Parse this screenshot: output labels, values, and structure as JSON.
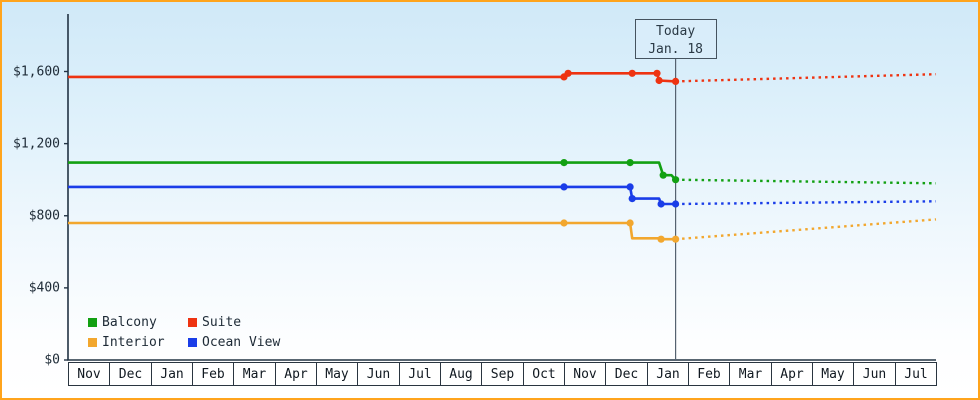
{
  "chart_data": {
    "type": "line",
    "title": "",
    "xlabel": "",
    "ylabel": "",
    "ylim": [
      0,
      1600
    ],
    "grid": false,
    "legend_position": "bottom-left",
    "y_ticks": [
      {
        "value": 0,
        "label": "$0"
      },
      {
        "value": 400,
        "label": "$400"
      },
      {
        "value": 800,
        "label": "$800"
      },
      {
        "value": 1200,
        "label": "$1,200"
      },
      {
        "value": 1600,
        "label": "$1,600"
      }
    ],
    "x_months": [
      "Nov",
      "Dec",
      "Jan",
      "Feb",
      "Mar",
      "Apr",
      "May",
      "Jun",
      "Jul",
      "Aug",
      "Sep",
      "Oct",
      "Nov",
      "Dec",
      "Jan",
      "Feb",
      "Mar",
      "Apr",
      "May",
      "Jun",
      "Jul"
    ],
    "today": {
      "month_index": 14.7,
      "label_line1": "Today",
      "label_line2": "Jan. 18"
    },
    "series": [
      {
        "name": "Suite",
        "color": "#ee3311",
        "history": [
          [
            0,
            1570
          ],
          [
            12,
            1570
          ],
          [
            12.1,
            1590
          ],
          [
            14.25,
            1590
          ],
          [
            14.3,
            1550
          ],
          [
            14.7,
            1545
          ]
        ],
        "dots": [
          [
            12,
            1570
          ],
          [
            12.1,
            1590
          ],
          [
            13.65,
            1590
          ],
          [
            14.25,
            1590
          ],
          [
            14.3,
            1550
          ],
          [
            14.7,
            1545
          ]
        ],
        "prediction": [
          [
            14.7,
            1545
          ],
          [
            21,
            1585
          ]
        ]
      },
      {
        "name": "Balcony",
        "color": "#12a012",
        "history": [
          [
            0,
            1095
          ],
          [
            14.3,
            1095
          ],
          [
            14.4,
            1025
          ],
          [
            14.6,
            1025
          ],
          [
            14.7,
            1000
          ]
        ],
        "dots": [
          [
            12,
            1095
          ],
          [
            13.6,
            1095
          ],
          [
            14.4,
            1025
          ],
          [
            14.7,
            1000
          ]
        ],
        "prediction": [
          [
            14.7,
            1000
          ],
          [
            21,
            980
          ]
        ]
      },
      {
        "name": "Ocean View",
        "color": "#1a3de8",
        "history": [
          [
            0,
            960
          ],
          [
            13.6,
            960
          ],
          [
            13.65,
            895
          ],
          [
            14.3,
            895
          ],
          [
            14.35,
            865
          ],
          [
            14.7,
            865
          ]
        ],
        "dots": [
          [
            12,
            960
          ],
          [
            13.6,
            960
          ],
          [
            13.65,
            895
          ],
          [
            14.35,
            865
          ],
          [
            14.7,
            865
          ]
        ],
        "prediction": [
          [
            14.7,
            865
          ],
          [
            21,
            880
          ]
        ]
      },
      {
        "name": "Interior",
        "color": "#f2a72e",
        "history": [
          [
            0,
            760
          ],
          [
            13.6,
            760
          ],
          [
            13.65,
            675
          ],
          [
            14.3,
            675
          ],
          [
            14.35,
            670
          ],
          [
            14.7,
            670
          ]
        ],
        "dots": [
          [
            12,
            760
          ],
          [
            13.6,
            760
          ],
          [
            14.35,
            670
          ],
          [
            14.7,
            670
          ]
        ],
        "prediction": [
          [
            14.7,
            670
          ],
          [
            21,
            780
          ]
        ]
      }
    ]
  },
  "legend": {
    "items": [
      {
        "label": "Balcony",
        "color": "#12a012"
      },
      {
        "label": "Suite",
        "color": "#ee3311"
      },
      {
        "label": "Interior",
        "color": "#f2a72e"
      },
      {
        "label": "Ocean View",
        "color": "#1a3de8"
      }
    ]
  },
  "colors": {
    "frame": "#ffa41c",
    "axis": "#223344",
    "today_line": "#556270",
    "plot_background_top": "#d0e9f8",
    "plot_background_bottom": "#ffffff"
  }
}
